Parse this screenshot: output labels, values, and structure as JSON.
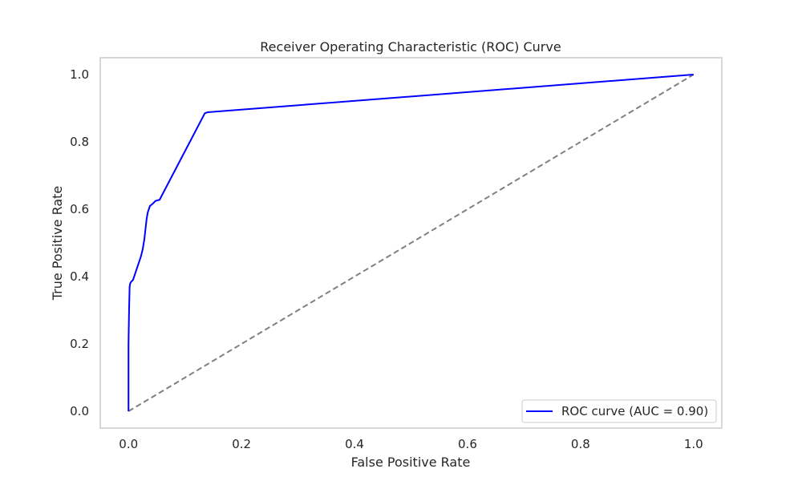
{
  "chart_data": {
    "type": "line",
    "title": "Receiver Operating Characteristic (ROC) Curve",
    "xlabel": "False Positive Rate",
    "ylabel": "True Positive Rate",
    "xlim": [
      -0.05,
      1.05
    ],
    "ylim": [
      -0.05,
      1.05
    ],
    "xticks": [
      0.0,
      0.2,
      0.4,
      0.6,
      0.8,
      1.0
    ],
    "yticks": [
      0.0,
      0.2,
      0.4,
      0.6,
      0.8,
      1.0
    ],
    "xtick_labels": [
      "0.0",
      "0.2",
      "0.4",
      "0.6",
      "0.8",
      "1.0"
    ],
    "ytick_labels": [
      "0.0",
      "0.2",
      "0.4",
      "0.6",
      "0.8",
      "1.0"
    ],
    "grid": false,
    "legend_position": "lower-right",
    "series": [
      {
        "name": "ROC curve (AUC = 0.90)",
        "color": "#0000ff",
        "style": "solid",
        "x": [
          0.0,
          0.0,
          0.001,
          0.002,
          0.003,
          0.005,
          0.008,
          0.01,
          0.014,
          0.018,
          0.022,
          0.025,
          0.028,
          0.03,
          0.032,
          0.034,
          0.036,
          0.038,
          0.042,
          0.048,
          0.055,
          0.135,
          0.14,
          1.0
        ],
        "y": [
          0.0,
          0.2,
          0.3,
          0.37,
          0.38,
          0.385,
          0.39,
          0.4,
          0.42,
          0.44,
          0.46,
          0.48,
          0.51,
          0.54,
          0.57,
          0.59,
          0.6,
          0.61,
          0.615,
          0.625,
          0.628,
          0.885,
          0.888,
          1.0
        ]
      },
      {
        "name": "",
        "color": "#808080",
        "style": "dashed",
        "x": [
          0.0,
          1.0
        ],
        "y": [
          0.0,
          1.0
        ]
      }
    ]
  }
}
